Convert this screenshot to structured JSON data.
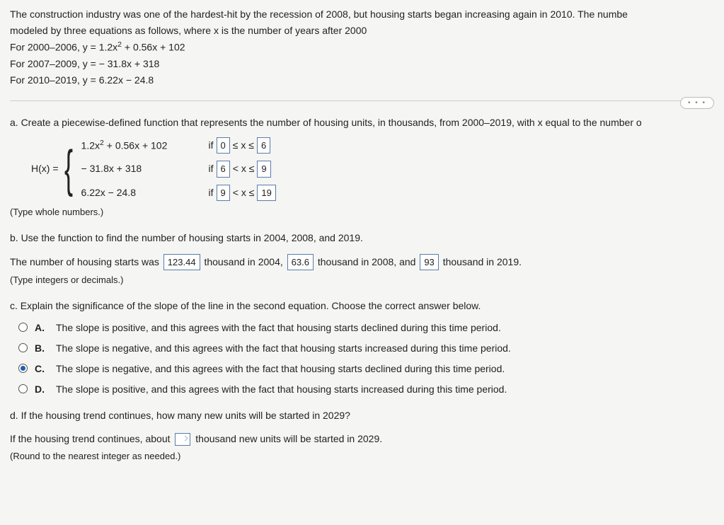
{
  "intro": {
    "line1": "The construction industry was one of the hardest-hit by the recession of 2008, but housing starts began increasing again in 2010. The numbe",
    "line2": "modeled by three equations as follows, where x is the number of years after 2000",
    "eq1_label": "For 2000–2006, y = 1.2x",
    "eq1_tail": " + 0.56x + 102",
    "eq2": "For 2007–2009, y = − 31.8x + 318",
    "eq3": "For 2010–2019, y = 6.22x − 24.8"
  },
  "dots": "• • •",
  "partA": {
    "prompt": "a. Create a piecewise-defined function that represents the number of housing units, in thousands, from 2000–2019, with x equal to the number o",
    "lhs": "H(x) = ",
    "rows": [
      {
        "expr_head": "1.2x",
        "expr_tail": " + 0.56x + 102",
        "if": "if",
        "a": "0",
        "op1": "≤ x ≤",
        "b": "6"
      },
      {
        "expr_head": "− 31.8x + 318",
        "expr_tail": "",
        "if": "if",
        "a": "6",
        "op1": "< x ≤",
        "b": "9"
      },
      {
        "expr_head": "6.22x − 24.8",
        "expr_tail": "",
        "if": "if",
        "a": "9",
        "op1": "< x ≤",
        "b": "19"
      }
    ],
    "hint": "(Type whole numbers.)"
  },
  "partB": {
    "prompt": "b. Use the function to find the number of housing starts in 2004, 2008, and 2019.",
    "sentence_pre": "The number of housing starts was ",
    "v2004": "123.44",
    "mid1": " thousand in 2004, ",
    "v2008": "63.6",
    "mid2": " thousand in 2008, and ",
    "v2019": "93",
    "tail": " thousand in 2019.",
    "hint": "(Type integers or decimals.)"
  },
  "partC": {
    "prompt": "c. Explain the significance of the slope of the line in the second equation. Choose the correct answer below.",
    "choices": [
      {
        "k": "A.",
        "t": "The slope is positive, and this agrees with the fact that housing starts declined during this time period."
      },
      {
        "k": "B.",
        "t": "The slope is negative, and this agrees with the fact that housing starts increased during this time period."
      },
      {
        "k": "C.",
        "t": "The slope is negative, and this agrees with the fact that housing starts declined during this time period."
      },
      {
        "k": "D.",
        "t": "The slope is positive, and this agrees with the fact that housing starts increased during this time period."
      }
    ],
    "selected": 2
  },
  "partD": {
    "prompt": "d. If the housing trend continues, how many new units will be started in 2029?",
    "sentence_pre": "If the housing trend continues, about ",
    "sentence_post": " thousand new units will be started in 2029.",
    "hint": "(Round to the nearest integer as needed.)"
  }
}
